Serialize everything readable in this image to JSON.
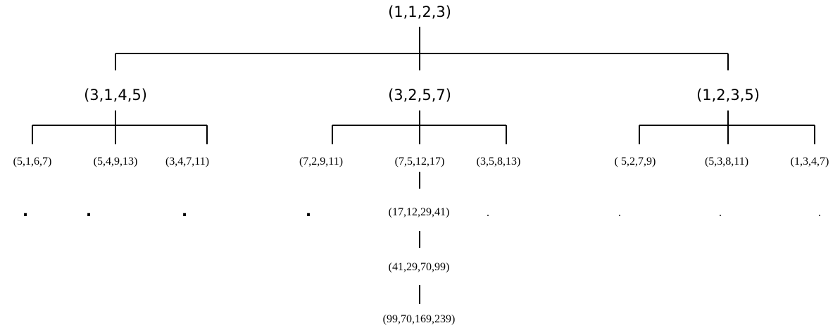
{
  "tree": {
    "root": "(1,1,2,3)",
    "level1": [
      "(3,1,4,5)",
      "(3,2,5,7)",
      "(1,2,3,5)"
    ],
    "level2": [
      "(5,1,6,7)",
      "(5,4,9,13)",
      "(3,4,7,11)",
      "(7,2,9,11)",
      "(7,5,12,17)",
      "(3,5,8,13)",
      "( 5,2,7,9)",
      "(5,3,8,11)",
      "(1,3,4,7)"
    ],
    "chain": [
      "(17,12,29,41)",
      "(41,29,70,99)",
      "(99,70,169,239)"
    ],
    "continuation_marks": [
      ".",
      ".",
      ".",
      ".",
      ".",
      ".",
      ".",
      "."
    ]
  },
  "colors": {
    "line": "#000000",
    "text": "#000000",
    "background": "#ffffff"
  }
}
